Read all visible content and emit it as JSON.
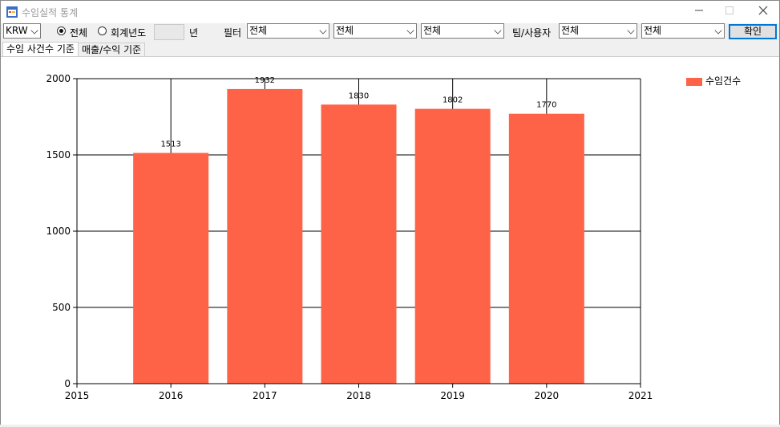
{
  "window": {
    "title": "수임실적 통계"
  },
  "toolbar": {
    "currency": "KRW",
    "radio_all": "전체",
    "radio_fiscal": "회계년도",
    "year_suffix": "년",
    "filter_label": "필터",
    "filter1": "전체",
    "filter2": "전체",
    "filter3": "전체",
    "team_label": "팀/사용자",
    "team": "전체",
    "user": "전체",
    "ok": "확인"
  },
  "tabs": [
    "수임 사건수 기준",
    "매출/수익 기준"
  ],
  "colors": {
    "bar": "#ff6347"
  },
  "chart_data": {
    "type": "bar",
    "categories": [
      "2016",
      "2017",
      "2018",
      "2019",
      "2020"
    ],
    "values": [
      1513,
      1932,
      1830,
      1802,
      1770
    ],
    "series": [
      {
        "name": "수임건수",
        "values": [
          1513,
          1932,
          1830,
          1802,
          1770
        ]
      }
    ],
    "xlim": [
      2015,
      2021
    ],
    "xticks": [
      "2015",
      "2016",
      "2017",
      "2018",
      "2019",
      "2020",
      "2021"
    ],
    "ylim": [
      0,
      2000
    ],
    "yticks": [
      "0",
      "500",
      "1000",
      "1500",
      "2000"
    ],
    "grid": true,
    "legend": "top-right"
  }
}
